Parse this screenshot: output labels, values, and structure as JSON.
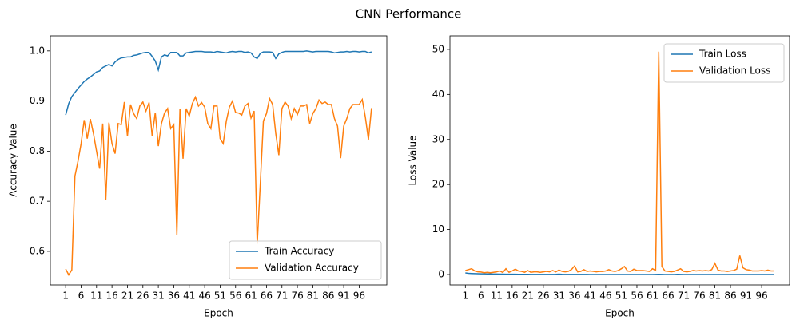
{
  "title": "CNN Performance",
  "chart_data": [
    {
      "type": "line",
      "xlabel": "Epoch",
      "ylabel": "Accuracy Value",
      "legend": "lower right",
      "x": [
        1,
        2,
        3,
        4,
        5,
        6,
        7,
        8,
        9,
        10,
        11,
        12,
        13,
        14,
        15,
        16,
        17,
        18,
        19,
        20,
        21,
        22,
        23,
        24,
        25,
        26,
        27,
        28,
        29,
        30,
        31,
        32,
        33,
        34,
        35,
        36,
        37,
        38,
        39,
        40,
        41,
        42,
        43,
        44,
        45,
        46,
        47,
        48,
        49,
        50,
        51,
        52,
        53,
        54,
        55,
        56,
        57,
        58,
        59,
        60,
        61,
        62,
        63,
        64,
        65,
        66,
        67,
        68,
        69,
        70,
        71,
        72,
        73,
        74,
        75,
        76,
        77,
        78,
        79,
        80,
        81,
        82,
        83,
        84,
        85,
        86,
        87,
        88,
        89,
        90,
        91,
        92,
        93,
        94,
        95,
        96,
        97,
        98,
        99,
        100
      ],
      "xlim": [
        -3.95,
        104.95
      ],
      "xticks": [
        1,
        6,
        11,
        16,
        21,
        26,
        31,
        36,
        41,
        46,
        51,
        56,
        61,
        66,
        71,
        76,
        81,
        86,
        91,
        96
      ],
      "ylim": [
        0.533,
        1.03
      ],
      "yticks": [
        0.6,
        0.7,
        0.8,
        0.9,
        {
          "value": 1,
          "label": "1.0"
        }
      ],
      "series": [
        {
          "name": "Train Accuracy",
          "color": "#1f77b4",
          "values": [
            0.872,
            0.895,
            0.909,
            0.917,
            0.925,
            0.932,
            0.939,
            0.944,
            0.948,
            0.953,
            0.958,
            0.96,
            0.967,
            0.97,
            0.973,
            0.97,
            0.978,
            0.983,
            0.986,
            0.987,
            0.988,
            0.988,
            0.991,
            0.992,
            0.994,
            0.996,
            0.997,
            0.997,
            0.989,
            0.98,
            0.962,
            0.988,
            0.992,
            0.99,
            0.997,
            0.997,
            0.997,
            0.99,
            0.99,
            0.996,
            0.997,
            0.998,
            0.999,
            0.999,
            0.999,
            0.998,
            0.998,
            0.998,
            0.997,
            0.999,
            0.998,
            0.997,
            0.996,
            0.998,
            0.999,
            0.998,
            0.999,
            0.999,
            0.997,
            0.998,
            0.996,
            0.988,
            0.985,
            0.995,
            0.998,
            0.998,
            0.998,
            0.997,
            0.985,
            0.994,
            0.997,
            0.999,
            0.999,
            0.999,
            0.999,
            0.999,
            0.999,
            0.999,
            1.0,
            0.999,
            0.998,
            0.999,
            0.999,
            0.999,
            0.999,
            0.999,
            0.998,
            0.996,
            0.997,
            0.998,
            0.998,
            0.999,
            0.998,
            0.999,
            0.999,
            0.998,
            0.999,
            0.999,
            0.996,
            0.998
          ]
        },
        {
          "name": "Validation Accuracy",
          "color": "#ff7f0e",
          "values": [
            0.565,
            0.553,
            0.563,
            0.75,
            0.78,
            0.815,
            0.862,
            0.825,
            0.864,
            0.835,
            0.8,
            0.765,
            0.855,
            0.703,
            0.857,
            0.815,
            0.795,
            0.855,
            0.853,
            0.898,
            0.83,
            0.893,
            0.875,
            0.865,
            0.89,
            0.898,
            0.88,
            0.897,
            0.83,
            0.877,
            0.81,
            0.855,
            0.876,
            0.885,
            0.845,
            0.853,
            0.632,
            0.885,
            0.785,
            0.885,
            0.87,
            0.895,
            0.908,
            0.89,
            0.897,
            0.888,
            0.855,
            0.845,
            0.89,
            0.89,
            0.825,
            0.815,
            0.86,
            0.888,
            0.9,
            0.877,
            0.876,
            0.872,
            0.89,
            0.895,
            0.866,
            0.88,
            0.615,
            0.735,
            0.86,
            0.875,
            0.905,
            0.893,
            0.835,
            0.792,
            0.885,
            0.898,
            0.89,
            0.865,
            0.885,
            0.873,
            0.89,
            0.89,
            0.893,
            0.855,
            0.875,
            0.885,
            0.902,
            0.895,
            0.898,
            0.893,
            0.893,
            0.865,
            0.85,
            0.786,
            0.85,
            0.865,
            0.885,
            0.893,
            0.893,
            0.893,
            0.903,
            0.868,
            0.823,
            0.886
          ]
        }
      ]
    },
    {
      "type": "line",
      "xlabel": "Epoch",
      "ylabel": "Loss Value",
      "legend": "upper right",
      "x": [
        1,
        2,
        3,
        4,
        5,
        6,
        7,
        8,
        9,
        10,
        11,
        12,
        13,
        14,
        15,
        16,
        17,
        18,
        19,
        20,
        21,
        22,
        23,
        24,
        25,
        26,
        27,
        28,
        29,
        30,
        31,
        32,
        33,
        34,
        35,
        36,
        37,
        38,
        39,
        40,
        41,
        42,
        43,
        44,
        45,
        46,
        47,
        48,
        49,
        50,
        51,
        52,
        53,
        54,
        55,
        56,
        57,
        58,
        59,
        60,
        61,
        62,
        63,
        64,
        65,
        66,
        67,
        68,
        69,
        70,
        71,
        72,
        73,
        74,
        75,
        76,
        77,
        78,
        79,
        80,
        81,
        82,
        83,
        84,
        85,
        86,
        87,
        88,
        89,
        90,
        91,
        92,
        93,
        94,
        95,
        96,
        97,
        98,
        99,
        100
      ],
      "xlim": [
        -3.95,
        104.95
      ],
      "xticks": [
        1,
        6,
        11,
        16,
        21,
        26,
        31,
        36,
        41,
        46,
        51,
        56,
        61,
        66,
        71,
        76,
        81,
        86,
        91,
        96
      ],
      "ylim": [
        -2.3,
        53
      ],
      "yticks": [
        0,
        10,
        20,
        30,
        40,
        50
      ],
      "series": [
        {
          "name": "Train Loss",
          "color": "#1f77b4",
          "values": [
            0.35,
            0.27,
            0.23,
            0.2,
            0.18,
            0.16,
            0.15,
            0.14,
            0.13,
            0.12,
            0.11,
            0.1,
            0.09,
            0.08,
            0.08,
            0.07,
            0.06,
            0.05,
            0.05,
            0.04,
            0.04,
            0.03,
            0.03,
            0.03,
            0.02,
            0.02,
            0.02,
            0.02,
            0.03,
            0.05,
            0.1,
            0.04,
            0.03,
            0.03,
            0.02,
            0.02,
            0.02,
            0.03,
            0.03,
            0.02,
            0.01,
            0.01,
            0.01,
            0.01,
            0.01,
            0.01,
            0.01,
            0.01,
            0.01,
            0.01,
            0.01,
            0.01,
            0.01,
            0.01,
            0.01,
            0.01,
            0.01,
            0.01,
            0.01,
            0.01,
            0.01,
            0.03,
            0.04,
            0.02,
            0.01,
            0.01,
            0.01,
            0.01,
            0.04,
            0.02,
            0.01,
            0.01,
            0.01,
            0.01,
            0.01,
            0.01,
            0.01,
            0.01,
            0.01,
            0.01,
            0.01,
            0.01,
            0.01,
            0.01,
            0.01,
            0.01,
            0.01,
            0.01,
            0.01,
            0.01,
            0.01,
            0.01,
            0.01,
            0.01,
            0.01,
            0.01,
            0.01,
            0.01,
            0.01,
            0.01
          ]
        },
        {
          "name": "Validation Loss",
          "color": "#ff7f0e",
          "values": [
            0.9,
            1.1,
            1.3,
            0.8,
            0.6,
            0.55,
            0.4,
            0.5,
            0.4,
            0.5,
            0.6,
            0.8,
            0.45,
            1.3,
            0.5,
            0.8,
            1.2,
            0.8,
            0.7,
            0.5,
            0.9,
            0.5,
            0.6,
            0.6,
            0.5,
            0.6,
            0.7,
            0.6,
            0.9,
            0.6,
            1.0,
            0.7,
            0.6,
            0.7,
            1.1,
            1.9,
            0.6,
            0.7,
            1.1,
            0.7,
            0.8,
            0.7,
            0.6,
            0.7,
            0.7,
            0.8,
            1.1,
            0.8,
            0.7,
            0.9,
            1.3,
            1.8,
            0.8,
            0.7,
            1.2,
            0.9,
            0.9,
            0.9,
            0.8,
            0.7,
            1.3,
            0.9,
            49.5,
            1.8,
            0.8,
            0.7,
            0.6,
            0.7,
            1.0,
            1.3,
            0.7,
            0.6,
            0.7,
            0.9,
            0.8,
            0.9,
            0.8,
            0.9,
            0.8,
            1.1,
            2.5,
            1.0,
            0.8,
            0.8,
            0.7,
            0.8,
            0.9,
            1.2,
            4.2,
            1.5,
            1.1,
            1.0,
            0.8,
            0.8,
            0.8,
            0.9,
            0.8,
            1.0,
            0.8,
            0.8
          ]
        }
      ]
    }
  ]
}
